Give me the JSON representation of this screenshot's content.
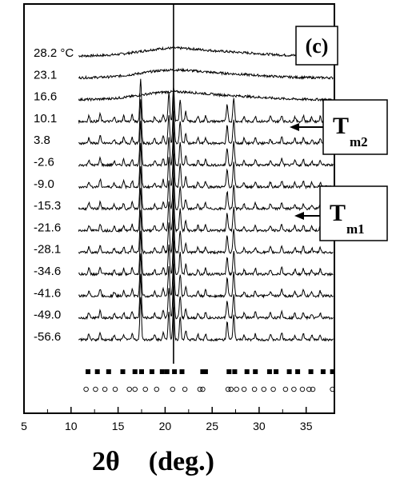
{
  "chart_data": {
    "type": "line",
    "xlabel_symbol": "2θ",
    "xlabel_unit": "(deg.)",
    "xlim": [
      5,
      38
    ],
    "x_ticks": [
      5,
      10,
      15,
      20,
      25,
      30,
      35
    ],
    "panel_label": "(c)",
    "vertical_marker_x": 20.9,
    "annotations": [
      {
        "main": "T",
        "sub": "m2",
        "between": [
          "10.1",
          "3.8"
        ]
      },
      {
        "main": "T",
        "sub": "m1",
        "between": [
          "-15.3",
          "-21.6"
        ]
      }
    ],
    "series": [
      {
        "name": "28.2 °C",
        "amorphous": true
      },
      {
        "name": "23.1",
        "amorphous": true
      },
      {
        "name": "16.6",
        "amorphous": true
      },
      {
        "name": "10.1",
        "amorphous": false
      },
      {
        "name": "3.8",
        "amorphous": false
      },
      {
        "name": "-2.6",
        "amorphous": false
      },
      {
        "name": "-9.0",
        "amorphous": false
      },
      {
        "name": "-15.3",
        "amorphous": false
      },
      {
        "name": "-21.6",
        "amorphous": false
      },
      {
        "name": "-28.1",
        "amorphous": false
      },
      {
        "name": "-34.6",
        "amorphous": false
      },
      {
        "name": "-41.6",
        "amorphous": false
      },
      {
        "name": "-49.0",
        "amorphous": false
      },
      {
        "name": "-56.6",
        "amorphous": false
      }
    ],
    "peaks": [
      {
        "x": 11.9,
        "h": 0.35
      },
      {
        "x": 13.1,
        "h": 0.45
      },
      {
        "x": 14.6,
        "h": 0.25
      },
      {
        "x": 15.6,
        "h": 0.35
      },
      {
        "x": 16.5,
        "h": 0.4
      },
      {
        "x": 17.4,
        "h": 2.7
      },
      {
        "x": 18.9,
        "h": 0.3
      },
      {
        "x": 19.8,
        "h": 0.45
      },
      {
        "x": 20.4,
        "h": 1.8
      },
      {
        "x": 20.9,
        "h": 2.2
      },
      {
        "x": 21.6,
        "h": 1.4
      },
      {
        "x": 22.2,
        "h": 0.6
      },
      {
        "x": 23.5,
        "h": 0.3
      },
      {
        "x": 24.3,
        "h": 0.35
      },
      {
        "x": 26.6,
        "h": 1.1
      },
      {
        "x": 27.3,
        "h": 1.5
      },
      {
        "x": 28.4,
        "h": 0.3
      },
      {
        "x": 29.6,
        "h": 0.35
      },
      {
        "x": 31.2,
        "h": 0.3
      },
      {
        "x": 32.4,
        "h": 0.4
      },
      {
        "x": 33.8,
        "h": 0.3
      },
      {
        "x": 34.7,
        "h": 0.35
      },
      {
        "x": 35.6,
        "h": 0.25
      },
      {
        "x": 36.5,
        "h": 0.3
      }
    ],
    "reference_filled_squares_x": [
      11.8,
      12.8,
      14.0,
      15.5,
      16.8,
      17.5,
      18.6,
      19.7,
      20.2,
      21.0,
      21.8,
      24.0,
      24.3,
      26.8,
      27.4,
      28.7,
      29.6,
      31.1,
      31.8,
      33.2,
      34.1,
      35.5,
      36.8,
      37.8
    ],
    "reference_open_circles_x": [
      11.6,
      12.6,
      13.6,
      14.7,
      16.2,
      16.8,
      17.9,
      19.1,
      20.8,
      22.1,
      23.7,
      24.0,
      26.7,
      27.0,
      27.6,
      28.4,
      29.5,
      30.5,
      31.5,
      32.8,
      33.7,
      34.6,
      35.3,
      35.7,
      37.8
    ]
  }
}
